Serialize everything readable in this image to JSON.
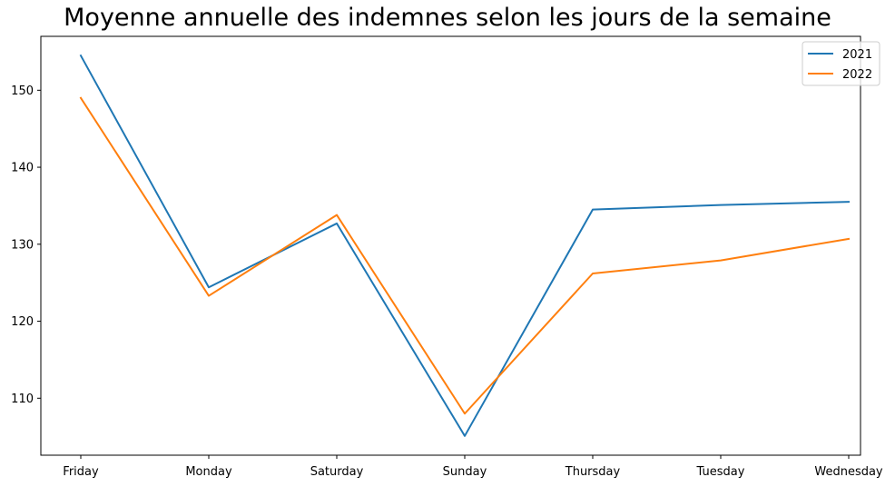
{
  "chart_data": {
    "type": "line",
    "title": "Moyenne annuelle des indemnes selon les jours de la semaine",
    "xlabel": "",
    "ylabel": "",
    "categories": [
      "Friday",
      "Monday",
      "Saturday",
      "Sunday",
      "Thursday",
      "Tuesday",
      "Wednesday"
    ],
    "series": [
      {
        "name": "2021",
        "color": "#1f77b4",
        "values": [
          154.5,
          124.4,
          132.7,
          105.1,
          134.5,
          135.1,
          135.5
        ]
      },
      {
        "name": "2022",
        "color": "#ff7f0e",
        "values": [
          149.0,
          123.3,
          133.8,
          108.0,
          126.2,
          127.9,
          130.7
        ]
      }
    ],
    "yticks": [
      110,
      120,
      130,
      140,
      150
    ],
    "ylim": [
      102.6,
      157.0
    ],
    "legend_position": "top-right",
    "grid": false
  }
}
